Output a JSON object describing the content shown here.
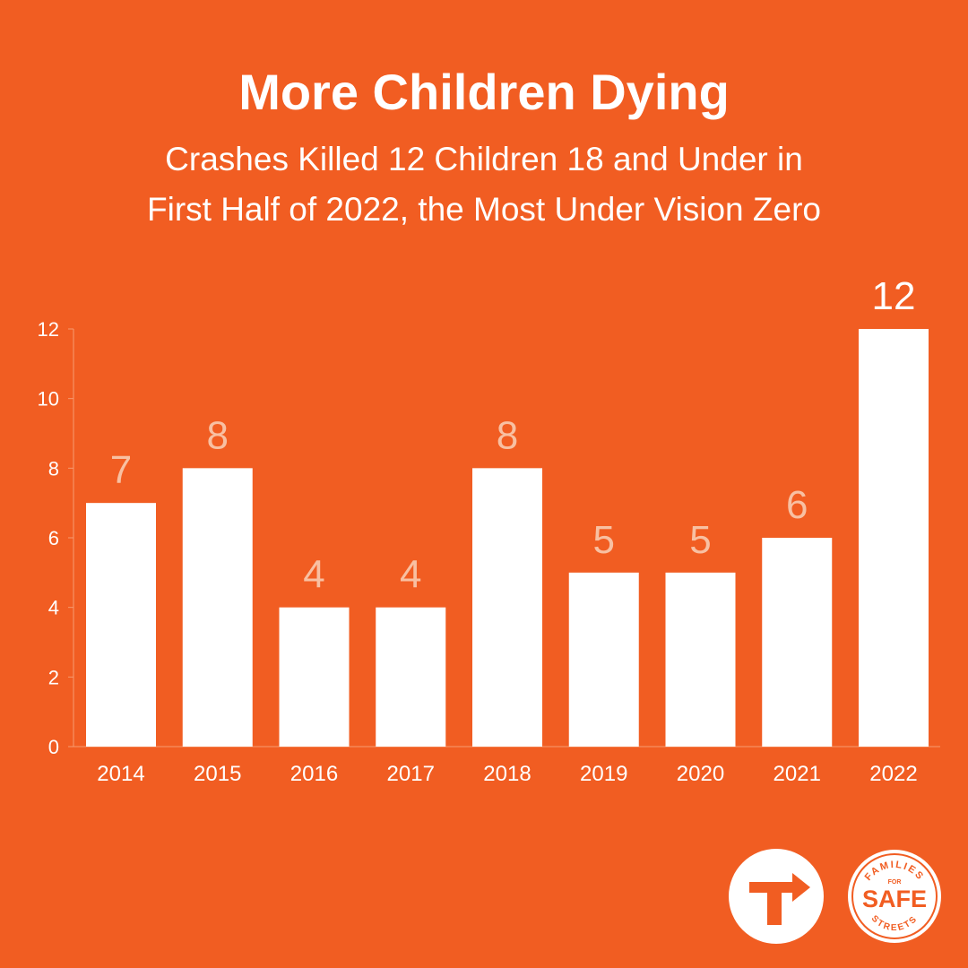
{
  "header": {
    "title": "More Children Dying",
    "subtitle_line1": "Crashes Killed 12 Children 18 and Under in",
    "subtitle_line2": "First Half of 2022, the Most Under Vision Zero"
  },
  "chart_data": {
    "type": "bar",
    "categories": [
      "2014",
      "2015",
      "2016",
      "2017",
      "2018",
      "2019",
      "2020",
      "2021",
      "2022"
    ],
    "values": [
      7,
      8,
      4,
      4,
      8,
      5,
      5,
      6,
      12
    ],
    "ylim": [
      0,
      12
    ],
    "yticks": [
      0,
      2,
      4,
      6,
      8,
      10,
      12
    ],
    "grid": false,
    "colors": {
      "background": "#F15D22",
      "bar": "#FFFFFF",
      "label": "#F8C0A2",
      "highlight_label": "#FFFFFF"
    }
  },
  "logos": {
    "families_text_top": "FAMILIES",
    "families_text_for": "FOR",
    "families_text_main": "SAFE",
    "families_text_bottom": "STREETS"
  }
}
